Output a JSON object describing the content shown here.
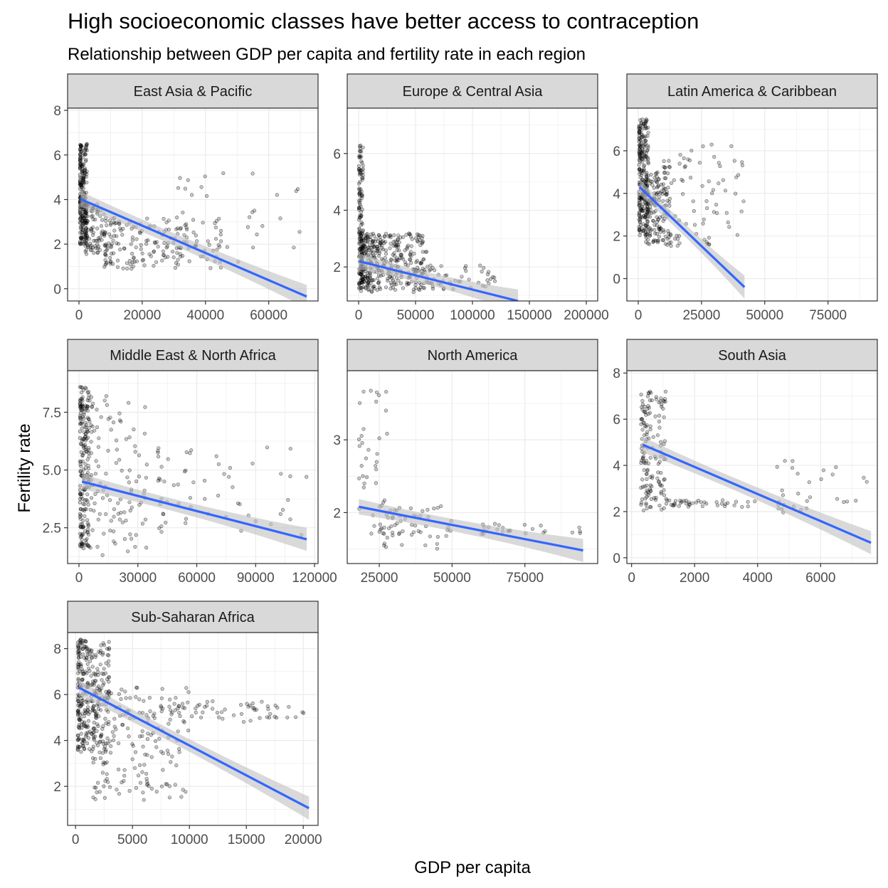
{
  "title": "High socioeconomic classes have better access to contraception",
  "subtitle": "Relationship between GDP per capita and fertility rate in each region",
  "xlabel": "GDP per capita",
  "ylabel": "Fertility rate",
  "colors": {
    "trend": "#3366FF",
    "ribbon": "#bfbfbf",
    "points": "#000000",
    "strip": "#d9d9d9",
    "grid": "#ebebeb"
  },
  "chart_data": [
    {
      "type": "scatter",
      "panel": "East Asia & Pacific",
      "xlim": [
        -3600,
        75600
      ],
      "ylim": [
        -0.55,
        8.1
      ],
      "xticks": [
        0,
        20000,
        40000,
        60000
      ],
      "yticks": [
        0,
        2,
        4,
        6,
        8
      ],
      "trend": {
        "x": [
          500,
          72000
        ],
        "y": [
          4.02,
          -0.35
        ]
      },
      "clusters": [
        {
          "x": [
            300,
            2500
          ],
          "y": [
            2.0,
            6.5
          ],
          "n": 220
        },
        {
          "x": [
            2000,
            8000
          ],
          "y": [
            1.5,
            3.8
          ],
          "n": 90
        },
        {
          "x": [
            8000,
            45000
          ],
          "y": [
            0.9,
            3.2
          ],
          "n": 180
        },
        {
          "x": [
            30000,
            70000
          ],
          "y": [
            1.0,
            5.2
          ],
          "n": 40
        }
      ]
    },
    {
      "type": "scatter",
      "panel": "Europe & Central Asia",
      "xlim": [
        -10000,
        210000
      ],
      "ylim": [
        0.8,
        7.6
      ],
      "xticks": [
        0,
        50000,
        100000,
        150000,
        200000
      ],
      "yticks": [
        2,
        4,
        6
      ],
      "trend": {
        "x": [
          500,
          140000
        ],
        "y": [
          2.2,
          0.8
        ]
      },
      "clusters": [
        {
          "x": [
            300,
            4000
          ],
          "y": [
            1.2,
            6.3
          ],
          "n": 120
        },
        {
          "x": [
            2000,
            60000
          ],
          "y": [
            1.1,
            3.2
          ],
          "n": 380
        },
        {
          "x": [
            50000,
            120000
          ],
          "y": [
            1.2,
            2.1
          ],
          "n": 60
        }
      ]
    },
    {
      "type": "scatter",
      "panel": "Latin America & Caribbean",
      "xlim": [
        -4500,
        94500
      ],
      "ylim": [
        -1.05,
        8.0
      ],
      "xticks": [
        0,
        25000,
        50000,
        75000
      ],
      "yticks": [
        0,
        2,
        4,
        6
      ],
      "trend": {
        "x": [
          500,
          42000
        ],
        "y": [
          4.3,
          -0.4
        ]
      },
      "clusters": [
        {
          "x": [
            300,
            4000
          ],
          "y": [
            2.0,
            7.5
          ],
          "n": 230
        },
        {
          "x": [
            3000,
            12000
          ],
          "y": [
            1.6,
            5.0
          ],
          "n": 160
        },
        {
          "x": [
            10000,
            42000
          ],
          "y": [
            1.5,
            6.3
          ],
          "n": 90
        }
      ]
    },
    {
      "type": "scatter",
      "panel": "Middle East & North Africa",
      "xlim": [
        -5800,
        121800
      ],
      "ylim": [
        0.95,
        9.3
      ],
      "xticks": [
        0,
        30000,
        60000,
        90000,
        120000
      ],
      "yticks": [
        2.5,
        5.0,
        7.5
      ],
      "trend": {
        "x": [
          1500,
          116000
        ],
        "y": [
          4.5,
          2.0
        ]
      },
      "clusters": [
        {
          "x": [
            500,
            5000
          ],
          "y": [
            1.6,
            8.6
          ],
          "n": 200
        },
        {
          "x": [
            5000,
            35000
          ],
          "y": [
            1.3,
            8.3
          ],
          "n": 120
        },
        {
          "x": [
            40000,
            116000
          ],
          "y": [
            1.9,
            6.1
          ],
          "n": 60
        }
      ]
    },
    {
      "type": "scatter",
      "panel": "North America",
      "xlim": [
        14000,
        100000
      ],
      "ylim": [
        1.3,
        3.95
      ],
      "xticks": [
        25000,
        50000,
        75000
      ],
      "yticks": [
        2,
        3
      ],
      "trend": {
        "x": [
          18000,
          95000
        ],
        "y": [
          2.08,
          1.48
        ]
      },
      "clusters": [
        {
          "x": [
            18000,
            28000
          ],
          "y": [
            1.7,
            3.7
          ],
          "n": 35
        },
        {
          "x": [
            25000,
            50000
          ],
          "y": [
            1.5,
            2.1
          ],
          "n": 60
        },
        {
          "x": [
            60000,
            95000
          ],
          "y": [
            1.7,
            1.85
          ],
          "n": 25
        }
      ]
    },
    {
      "type": "scatter",
      "panel": "South Asia",
      "xlim": [
        -150,
        7800
      ],
      "ylim": [
        -0.25,
        8.1
      ],
      "xticks": [
        0,
        2000,
        4000,
        6000
      ],
      "yticks": [
        0,
        2,
        4,
        6,
        8
      ],
      "trend": {
        "x": [
          350,
          7600
        ],
        "y": [
          4.9,
          0.65
        ]
      },
      "clusters": [
        {
          "x": [
            300,
            1100
          ],
          "y": [
            2.0,
            7.2
          ],
          "n": 150
        },
        {
          "x": [
            1000,
            4000
          ],
          "y": [
            2.2,
            2.5
          ],
          "n": 40
        },
        {
          "x": [
            4500,
            7600
          ],
          "y": [
            1.9,
            4.2
          ],
          "n": 30
        }
      ]
    },
    {
      "type": "scatter",
      "panel": "Sub-Saharan Africa",
      "xlim": [
        -700,
        21300
      ],
      "ylim": [
        0.3,
        8.7
      ],
      "xticks": [
        0,
        5000,
        10000,
        15000,
        20000
      ],
      "yticks": [
        2,
        4,
        6,
        8
      ],
      "trend": {
        "x": [
          300,
          20500
        ],
        "y": [
          6.3,
          1.05
        ]
      },
      "clusters": [
        {
          "x": [
            200,
            3000
          ],
          "y": [
            3.5,
            8.4
          ],
          "n": 300
        },
        {
          "x": [
            1500,
            10000
          ],
          "y": [
            1.4,
            6.3
          ],
          "n": 180
        },
        {
          "x": [
            8000,
            20500
          ],
          "y": [
            4.8,
            5.8
          ],
          "n": 60
        }
      ]
    }
  ]
}
